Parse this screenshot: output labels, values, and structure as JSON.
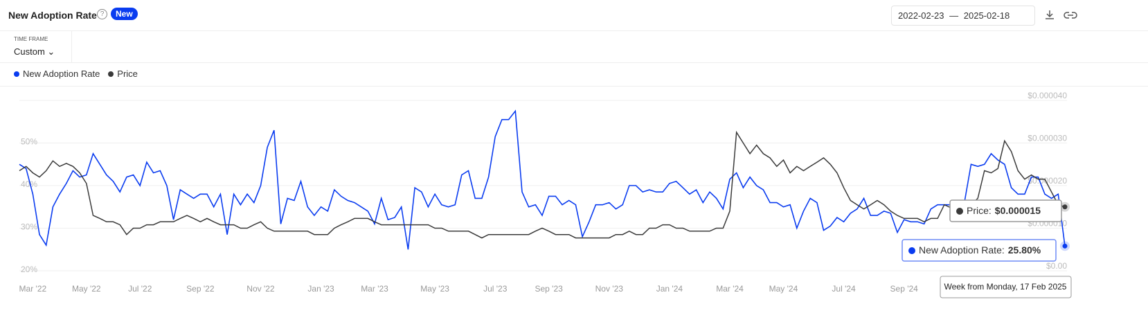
{
  "header": {
    "title": "New Adoption Rate",
    "badge": "New",
    "date_start": "2022-02-23",
    "date_separator": "—",
    "date_end": "2025-02-18"
  },
  "timeframe": {
    "label": "TIME FRAME",
    "value": "Custom"
  },
  "chart_data": {
    "type": "line",
    "categories": [
      null,
      null,
      "Mar '22",
      null,
      null,
      null,
      null,
      null,
      null,
      null,
      "May '22",
      null,
      null,
      null,
      null,
      null,
      null,
      null,
      "Jul '22",
      null,
      null,
      null,
      null,
      null,
      null,
      null,
      null,
      "Sep '22",
      null,
      null,
      null,
      null,
      null,
      null,
      null,
      null,
      "Nov '22",
      null,
      null,
      null,
      null,
      null,
      null,
      null,
      null,
      "Jan '23",
      null,
      null,
      null,
      null,
      null,
      null,
      null,
      "Mar '23",
      null,
      null,
      null,
      null,
      null,
      null,
      null,
      null,
      "May '23",
      null,
      null,
      null,
      null,
      null,
      null,
      null,
      null,
      "Jul '23",
      null,
      null,
      null,
      null,
      null,
      null,
      null,
      "Sep '23",
      null,
      null,
      null,
      null,
      null,
      null,
      null,
      null,
      "Nov '23",
      null,
      null,
      null,
      null,
      null,
      null,
      null,
      null,
      "Jan '24",
      null,
      null,
      null,
      null,
      null,
      null,
      null,
      null,
      "Mar '24",
      null,
      null,
      null,
      null,
      null,
      null,
      null,
      "May '24",
      null,
      null,
      null,
      null,
      null,
      null,
      null,
      null,
      "Jul '24",
      null,
      null,
      null,
      null,
      null,
      null,
      null,
      null,
      "Sep '24",
      null,
      null,
      null,
      null,
      null,
      null,
      null,
      null,
      null,
      null,
      null,
      null,
      null,
      null,
      null,
      null,
      null,
      null,
      null,
      null,
      null,
      null,
      null,
      null
    ],
    "series": [
      {
        "name": "New Adoption Rate",
        "color": "#0a3cf0",
        "axis": "y",
        "values": [
          45,
          44,
          38,
          28.5,
          26,
          35,
          38,
          40.5,
          43.5,
          42,
          42.5,
          47.5,
          45,
          42.5,
          41,
          38.5,
          42,
          42.5,
          40,
          45.5,
          43,
          43.5,
          40,
          32,
          39,
          38,
          37,
          38,
          38,
          35,
          38,
          28.5,
          38,
          35.5,
          38,
          36,
          40,
          49,
          53,
          31,
          37,
          36.5,
          41,
          35,
          33,
          35,
          34,
          39,
          37.5,
          36.5,
          36,
          35,
          34,
          31,
          37,
          32,
          32.5,
          35,
          25,
          39.5,
          38.5,
          35,
          38,
          35.5,
          35,
          35.5,
          42.5,
          43.5,
          37,
          37,
          42,
          51.5,
          55.5,
          55.5,
          57.5,
          38.5,
          35,
          35.5,
          33,
          37.5,
          37.5,
          35.5,
          36.5,
          35.5,
          28,
          31.5,
          35.5,
          35.5,
          36,
          34.5,
          35.5,
          40,
          40,
          38.5,
          39,
          38.5,
          38.5,
          40.5,
          41,
          39.5,
          38,
          39,
          36,
          38.5,
          37,
          34.5,
          41.5,
          43,
          39.5,
          42,
          40,
          39,
          36,
          36,
          35,
          35.5,
          30,
          34,
          37,
          36,
          29.5,
          30.5,
          32.5,
          31.5,
          33.5,
          34.5,
          37,
          33,
          33,
          34,
          33.5,
          29,
          32,
          31.5,
          31.5,
          31,
          34.5,
          35.5,
          35.5,
          35.5,
          35.5,
          36,
          45,
          44.5,
          45,
          47.5,
          46,
          45,
          39.5,
          38,
          38,
          42,
          42,
          38,
          37,
          38,
          25.8
        ]
      },
      {
        "name": "Price",
        "color": "#3a3a3a",
        "axis": "y2",
        "values": [
          2.35e-05,
          2.45e-05,
          2.3e-05,
          2.2e-05,
          2.35e-05,
          2.58e-05,
          2.45e-05,
          2.52e-05,
          2.45e-05,
          2.3e-05,
          2.05e-05,
          1.3e-05,
          1.23e-05,
          1.15e-05,
          1.15e-05,
          1.08e-05,
          8.5e-06,
          1e-05,
          1e-05,
          1.08e-05,
          1.08e-05,
          1.15e-05,
          1.15e-05,
          1.15e-05,
          1.23e-05,
          1.3e-05,
          1.23e-05,
          1.15e-05,
          1.23e-05,
          1.15e-05,
          1.08e-05,
          1.08e-05,
          1.08e-05,
          1e-05,
          1e-05,
          1.08e-05,
          1.15e-05,
          1e-05,
          9.3e-06,
          9.3e-06,
          9.3e-06,
          9.3e-06,
          9.3e-06,
          9.3e-06,
          8.5e-06,
          8.5e-06,
          8.5e-06,
          1e-05,
          1.08e-05,
          1.15e-05,
          1.23e-05,
          1.23e-05,
          1.23e-05,
          1.15e-05,
          1.08e-05,
          1.08e-05,
          1.08e-05,
          1.08e-05,
          1.08e-05,
          1.08e-05,
          1.08e-05,
          1.08e-05,
          1e-05,
          1e-05,
          9.3e-06,
          9.3e-06,
          9.3e-06,
          9.3e-06,
          8.5e-06,
          7.7e-06,
          8.5e-06,
          8.5e-06,
          8.5e-06,
          8.5e-06,
          8.5e-06,
          8.5e-06,
          8.5e-06,
          9.3e-06,
          1e-05,
          9.3e-06,
          8.5e-06,
          8.5e-06,
          8.5e-06,
          7.7e-06,
          7.7e-06,
          7.7e-06,
          7.7e-06,
          7.7e-06,
          7.7e-06,
          8.5e-06,
          8.5e-06,
          9.3e-06,
          8.5e-06,
          8.5e-06,
          1e-05,
          1e-05,
          1.08e-05,
          1.08e-05,
          1e-05,
          1e-05,
          9.3e-06,
          9.3e-06,
          9.3e-06,
          9.3e-06,
          1e-05,
          1e-05,
          1.4e-05,
          3.25e-05,
          3e-05,
          2.75e-05,
          2.95e-05,
          2.75e-05,
          2.65e-05,
          2.45e-05,
          2.6e-05,
          2.3e-05,
          2.45e-05,
          2.35e-05,
          2.45e-05,
          2.55e-05,
          2.65e-05,
          2.5e-05,
          2.3e-05,
          1.95e-05,
          1.65e-05,
          1.55e-05,
          1.45e-05,
          1.55e-05,
          1.65e-05,
          1.55e-05,
          1.4e-05,
          1.3e-05,
          1.23e-05,
          1.23e-05,
          1.23e-05,
          1.15e-05,
          1.23e-05,
          1.23e-05,
          1.55e-05,
          1.48e-05,
          1.48e-05,
          1.55e-05,
          1.55e-05,
          1.7e-05,
          2.35e-05,
          2.3e-05,
          2.4e-05,
          3.05e-05,
          2.8e-05,
          2.35e-05,
          2.15e-05,
          2.25e-05,
          2.15e-05,
          2.15e-05,
          1.85e-05,
          1.55e-05,
          1.5e-05
        ]
      }
    ],
    "ylim": [
      20,
      60
    ],
    "yticks": [
      {
        "value": 20,
        "label": "20%"
      },
      {
        "value": 30,
        "label": "30%"
      },
      {
        "value": 40,
        "label": "40%"
      },
      {
        "value": 50,
        "label": "50%"
      }
    ],
    "y2lim": [
      0,
      4e-05
    ],
    "y2ticks": [
      {
        "value": 0,
        "label": "$0.00"
      },
      {
        "value": 1e-05,
        "label": "$0.000010"
      },
      {
        "value": 2e-05,
        "label": "$0.000020"
      },
      {
        "value": 3e-05,
        "label": "$0.000030"
      },
      {
        "value": 4e-05,
        "label": "$0.000040"
      }
    ],
    "grid": true,
    "legend": "top-left",
    "tooltip": {
      "labels": [
        "New Adoption Rate:",
        "Price:"
      ],
      "value_labels": [
        "25.80%",
        "$0.000015"
      ],
      "date": "Week from Monday, 17 Feb 2025"
    }
  }
}
